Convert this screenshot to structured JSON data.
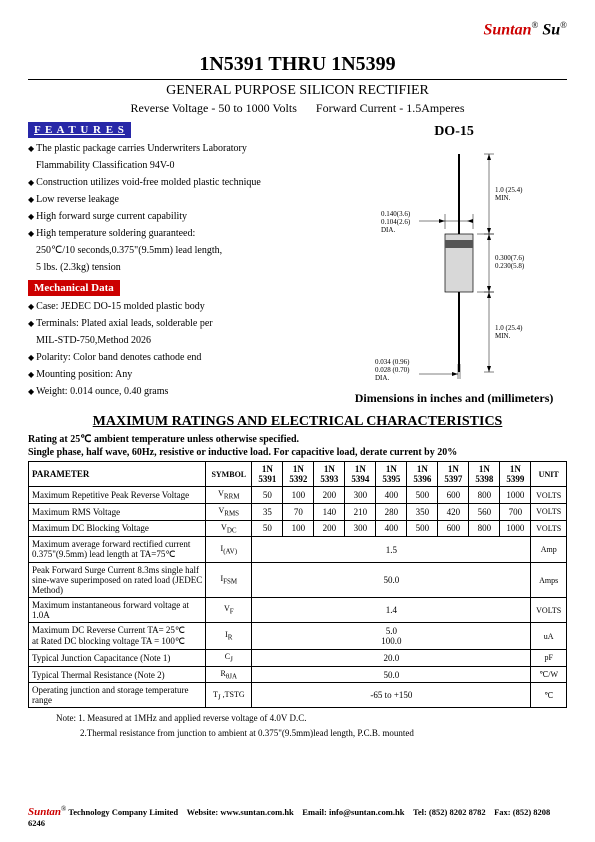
{
  "brand": {
    "name1": "Suntan",
    "name2": "Su",
    "reg": "®"
  },
  "title": "1N5391 THRU 1N5399",
  "subtitle": "GENERAL PURPOSE SILICON RECTIFIER",
  "specline": {
    "rv": "Reverse Voltage - 50 to 1000 Volts",
    "fc": "Forward Current - 1.5Amperes"
  },
  "features_label": "F E A T U R E S",
  "features": [
    "The plastic package carries Underwriters Laboratory",
    "Flammability Classification 94V-0",
    "Construction utilizes void-free molded plastic technique",
    "Low reverse leakage",
    "High forward surge current capability",
    "High temperature soldering guaranteed:",
    "250℃/10 seconds,0.375\"(9.5mm) lead length,",
    "5 lbs. (2.3kg) tension"
  ],
  "mechdata_label": "Mechanical Data",
  "mechdata": [
    "Case: JEDEC DO-15 molded plastic body",
    "Terminals: Plated axial leads, solderable per",
    "MIL-STD-750,Method 2026",
    "Polarity: Color band denotes cathode end",
    "Mounting position: Any",
    "Weight: 0.014 ounce, 0.40 grams"
  ],
  "package": {
    "title": "DO-15",
    "dim_lead_top": "1.0 (25.4)\nMIN.",
    "dim_body_w": "0.140(3.6)\n0.104(2.6)\nDIA.",
    "dim_body_h": "0.300(7.6)\n0.230(5.8)",
    "dim_lead_bot": "1.0 (25.4)\nMIN.",
    "dim_lead_dia": "0.034 (0.96)\n0.028 (0.70)\nDIA.",
    "note": "Dimensions in inches and (millimeters)"
  },
  "ratings_title": "MAXIMUM RATINGS AND ELECTRICAL CHARACTERISTICS",
  "cond1": "Rating at 25℃  ambient temperature unless otherwise specified.",
  "cond2": "Single phase, half wave, 60Hz, resistive or inductive load. For capacitive load, derate current by 20%",
  "table": {
    "headers": [
      "PARAMETER",
      "SYMBOL",
      "1N\n5391",
      "1N\n5392",
      "1N\n5393",
      "1N\n5394",
      "1N\n5395",
      "1N\n5396",
      "1N\n5397",
      "1N\n5398",
      "1N\n5399",
      "UNIT"
    ],
    "rows": [
      {
        "param": "Maximum Repetitive Peak Reverse Voltage",
        "sym": "VRRM",
        "vals": [
          "50",
          "100",
          "200",
          "300",
          "400",
          "500",
          "600",
          "800",
          "1000"
        ],
        "unit": "VOLTS"
      },
      {
        "param": "Maximum RMS Voltage",
        "sym": "VRMS",
        "vals": [
          "35",
          "70",
          "140",
          "210",
          "280",
          "350",
          "420",
          "560",
          "700"
        ],
        "unit": "VOLTS"
      },
      {
        "param": "Maximum DC Blocking Voltage",
        "sym": "VDC",
        "vals": [
          "50",
          "100",
          "200",
          "300",
          "400",
          "500",
          "600",
          "800",
          "1000"
        ],
        "unit": "VOLTS"
      },
      {
        "param": "Maximum average forward rectified current 0.375\"(9.5mm) lead length at TA=75℃",
        "sym": "I(AV)",
        "span": "1.5",
        "unit": "Amp"
      },
      {
        "param": "Peak Forward Surge Current 8.3ms single half sine-wave superimposed on rated load (JEDEC Method)",
        "sym": "IFSM",
        "span": "50.0",
        "unit": "Amps"
      },
      {
        "param": "Maximum instantaneous forward voltage at 1.0A",
        "sym": "VF",
        "span": "1.4",
        "unit": "VOLTS"
      },
      {
        "param": "Maximum DC Reverse Current    TA= 25℃\nat Rated DC blocking voltage      TA = 100℃",
        "sym": "IR",
        "span": "5.0\n100.0",
        "unit": "uA"
      },
      {
        "param": "Typical Junction Capacitance (Note 1)",
        "sym": "CJ",
        "span": "20.0",
        "unit": "pF"
      },
      {
        "param": "Typical Thermal Resistance (Note 2)",
        "sym": "RθJA",
        "span": "50.0",
        "unit": "℃/W"
      },
      {
        "param": "Operating junction and storage temperature range",
        "sym": "TJ ,TSTG",
        "span": "-65 to +150",
        "unit": "℃"
      }
    ]
  },
  "notes": {
    "n1": "Note: 1. Measured at 1MHz and applied reverse voltage of 4.0V D.C.",
    "n2": "2.Thermal resistance from junction to ambient at 0.375\"(9.5mm)lead length, P.C.B. mounted"
  },
  "footer": {
    "company": " Technology Company Limited",
    "website_l": "Website: ",
    "website": "www.suntan.com.hk",
    "email_l": "Email: ",
    "email": "info@suntan.com.hk",
    "tel_l": "Tel: ",
    "tel": "(852) 8202 8782",
    "fax_l": "Fax: ",
    "fax": "(852) 8208 6246"
  }
}
